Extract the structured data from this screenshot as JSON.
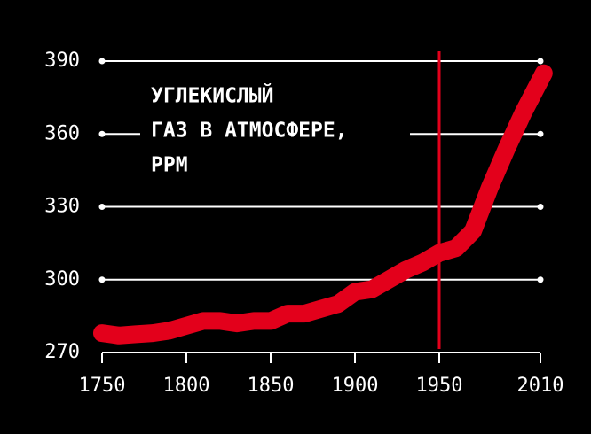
{
  "chart_data": {
    "type": "line",
    "title": [
      "УГЛЕКИСЛЫЙ",
      "ГАЗ В АТМОСФЕРЕ,",
      "PPM"
    ],
    "x": [
      1750,
      1760,
      1770,
      1780,
      1790,
      1800,
      1810,
      1820,
      1830,
      1840,
      1850,
      1860,
      1870,
      1880,
      1890,
      1900,
      1910,
      1920,
      1930,
      1940,
      1950,
      1960,
      1970,
      1980,
      1990,
      2000,
      2012
    ],
    "series": [
      {
        "color": "#e3001b",
        "values": [
          278,
          277,
          277.5,
          278,
          279,
          281,
          283,
          283,
          282,
          283,
          283,
          286,
          286,
          288,
          290,
          295,
          296,
          300,
          304,
          307,
          311,
          313,
          320,
          338,
          354,
          369,
          385
        ]
      }
    ],
    "xlim": [
      1750,
      2010
    ],
    "xticks": [
      1750,
      1800,
      1850,
      1900,
      1950,
      2010
    ],
    "ylim": [
      270,
      390
    ],
    "yticks": [
      270,
      300,
      330,
      360,
      390
    ],
    "marker_line": {
      "x": 1950,
      "color": "#e3001b"
    },
    "grid": true
  }
}
